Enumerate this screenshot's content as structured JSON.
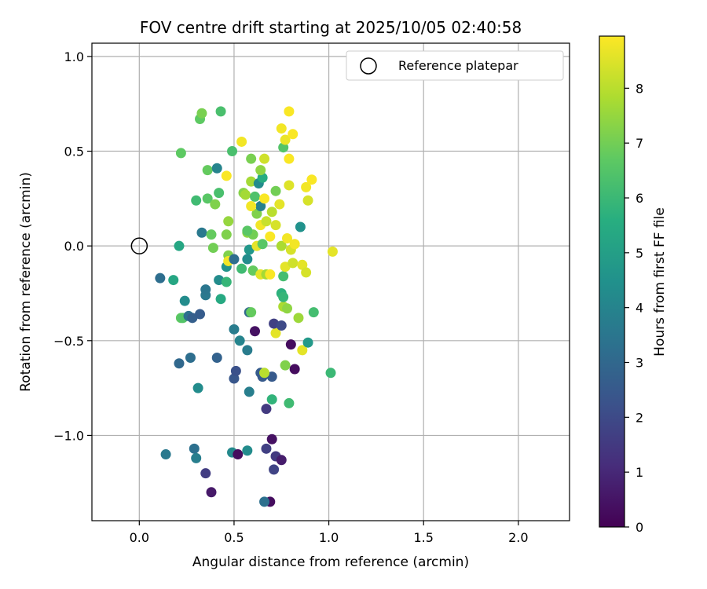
{
  "chart_data": {
    "type": "scatter",
    "title": "FOV centre drift starting at 2025/10/05 02:40:58",
    "xlabel": "Angular distance from reference (arcmin)",
    "ylabel": "Rotation from reference (arcmin)",
    "xlim": [
      -0.25,
      2.27
    ],
    "ylim": [
      -1.45,
      1.07
    ],
    "xticks": [
      0.0,
      0.5,
      1.0,
      1.5,
      2.0
    ],
    "xtick_labels": [
      "0.0",
      "0.5",
      "1.0",
      "1.5",
      "2.0"
    ],
    "yticks": [
      -1.0,
      -0.5,
      0.0,
      0.5,
      1.0
    ],
    "ytick_labels": [
      "−1.0",
      "−0.5",
      "0.0",
      "0.5",
      "1.0"
    ],
    "grid": true,
    "legend": {
      "position": "top-right",
      "entries": [
        {
          "label": "Reference platepar",
          "marker": "open-circle"
        }
      ]
    },
    "reference_point": {
      "x": 0.0,
      "y": 0.0
    },
    "colorbar": {
      "label": "Hours from first FF file",
      "min": 0,
      "max": 8.95,
      "ticks": [
        0,
        1,
        2,
        3,
        4,
        5,
        6,
        7,
        8
      ],
      "tick_labels": [
        "0",
        "1",
        "2",
        "3",
        "4",
        "5",
        "6",
        "7",
        "8"
      ],
      "colormap": "viridis"
    },
    "points": [
      {
        "x": 0.38,
        "y": -1.3,
        "h": 0.6
      },
      {
        "x": 0.35,
        "y": -1.2,
        "h": 1.6
      },
      {
        "x": 0.69,
        "y": -1.35,
        "h": 0.3
      },
      {
        "x": 0.66,
        "y": -1.35,
        "h": 3.3
      },
      {
        "x": 0.14,
        "y": -1.1,
        "h": 3.6
      },
      {
        "x": 0.29,
        "y": -1.07,
        "h": 3.3
      },
      {
        "x": 0.3,
        "y": -1.12,
        "h": 3.8
      },
      {
        "x": 0.49,
        "y": -1.09,
        "h": 4.2
      },
      {
        "x": 0.52,
        "y": -1.1,
        "h": 0.3
      },
      {
        "x": 0.57,
        "y": -1.08,
        "h": 4.3
      },
      {
        "x": 0.67,
        "y": -1.07,
        "h": 1.7
      },
      {
        "x": 0.7,
        "y": -1.02,
        "h": 0.4
      },
      {
        "x": 0.72,
        "y": -1.11,
        "h": 1.5
      },
      {
        "x": 0.75,
        "y": -1.13,
        "h": 0.7
      },
      {
        "x": 0.71,
        "y": -1.18,
        "h": 1.8
      },
      {
        "x": 0.31,
        "y": -0.75,
        "h": 4.3
      },
      {
        "x": 0.58,
        "y": -0.77,
        "h": 3.8
      },
      {
        "x": 0.67,
        "y": -0.86,
        "h": 1.5
      },
      {
        "x": 0.7,
        "y": -0.81,
        "h": 5.8
      },
      {
        "x": 0.79,
        "y": -0.83,
        "h": 6.1
      },
      {
        "x": 0.5,
        "y": -0.7,
        "h": 2.4
      },
      {
        "x": 0.51,
        "y": -0.66,
        "h": 2.2
      },
      {
        "x": 0.64,
        "y": -0.67,
        "h": 2.6
      },
      {
        "x": 0.65,
        "y": -0.69,
        "h": 2.5
      },
      {
        "x": 0.7,
        "y": -0.69,
        "h": 2.5
      },
      {
        "x": 0.66,
        "y": -0.67,
        "h": 8.0
      },
      {
        "x": 0.77,
        "y": -0.63,
        "h": 7.2
      },
      {
        "x": 0.82,
        "y": -0.65,
        "h": 0.3
      },
      {
        "x": 1.01,
        "y": -0.67,
        "h": 6.0
      },
      {
        "x": 0.21,
        "y": -0.62,
        "h": 3.0
      },
      {
        "x": 0.27,
        "y": -0.59,
        "h": 3.2
      },
      {
        "x": 0.41,
        "y": -0.59,
        "h": 2.8
      },
      {
        "x": 0.53,
        "y": -0.5,
        "h": 4.0
      },
      {
        "x": 0.57,
        "y": -0.55,
        "h": 3.7
      },
      {
        "x": 0.61,
        "y": -0.45,
        "h": 0.4
      },
      {
        "x": 0.72,
        "y": -0.46,
        "h": 8.6
      },
      {
        "x": 0.8,
        "y": -0.52,
        "h": 0.3
      },
      {
        "x": 0.86,
        "y": -0.55,
        "h": 8.6
      },
      {
        "x": 0.89,
        "y": -0.51,
        "h": 4.8
      },
      {
        "x": 0.5,
        "y": -0.44,
        "h": 3.7
      },
      {
        "x": 0.22,
        "y": -0.38,
        "h": 6.7
      },
      {
        "x": 0.23,
        "y": -0.38,
        "h": 6.5
      },
      {
        "x": 0.26,
        "y": -0.37,
        "h": 3.3
      },
      {
        "x": 0.28,
        "y": -0.38,
        "h": 2.7
      },
      {
        "x": 0.32,
        "y": -0.36,
        "h": 2.6
      },
      {
        "x": 0.24,
        "y": -0.29,
        "h": 4.3
      },
      {
        "x": 0.35,
        "y": -0.26,
        "h": 3.6
      },
      {
        "x": 0.35,
        "y": -0.23,
        "h": 3.5
      },
      {
        "x": 0.43,
        "y": -0.28,
        "h": 5.4
      },
      {
        "x": 0.58,
        "y": -0.35,
        "h": 3.0
      },
      {
        "x": 0.59,
        "y": -0.35,
        "h": 6.8
      },
      {
        "x": 0.71,
        "y": -0.41,
        "h": 1.7
      },
      {
        "x": 0.75,
        "y": -0.42,
        "h": 2.0
      },
      {
        "x": 0.76,
        "y": -0.32,
        "h": 7.8
      },
      {
        "x": 0.78,
        "y": -0.33,
        "h": 7.4
      },
      {
        "x": 0.84,
        "y": -0.38,
        "h": 7.6
      },
      {
        "x": 0.92,
        "y": -0.35,
        "h": 6.2
      },
      {
        "x": 0.75,
        "y": -0.25,
        "h": 5.7
      },
      {
        "x": 0.76,
        "y": -0.27,
        "h": 5.9
      },
      {
        "x": 0.11,
        "y": -0.17,
        "h": 3.2
      },
      {
        "x": 0.18,
        "y": -0.18,
        "h": 5.3
      },
      {
        "x": 0.42,
        "y": -0.18,
        "h": 4.3
      },
      {
        "x": 0.46,
        "y": -0.19,
        "h": 5.9
      },
      {
        "x": 0.46,
        "y": -0.11,
        "h": 4.6
      },
      {
        "x": 0.47,
        "y": -0.05,
        "h": 7.2
      },
      {
        "x": 0.47,
        "y": -0.08,
        "h": 8.8
      },
      {
        "x": 0.5,
        "y": -0.07,
        "h": 3.2
      },
      {
        "x": 0.54,
        "y": -0.12,
        "h": 6.1
      },
      {
        "x": 0.57,
        "y": -0.07,
        "h": 4.3
      },
      {
        "x": 0.58,
        "y": -0.02,
        "h": 4.7
      },
      {
        "x": 0.6,
        "y": -0.13,
        "h": 6.8
      },
      {
        "x": 0.64,
        "y": -0.15,
        "h": 8.6
      },
      {
        "x": 0.67,
        "y": -0.15,
        "h": 7.7
      },
      {
        "x": 0.69,
        "y": -0.15,
        "h": 8.9
      },
      {
        "x": 0.76,
        "y": -0.16,
        "h": 6.2
      },
      {
        "x": 0.77,
        "y": -0.11,
        "h": 8.6
      },
      {
        "x": 0.81,
        "y": -0.09,
        "h": 8.3
      },
      {
        "x": 0.86,
        "y": -0.1,
        "h": 8.6
      },
      {
        "x": 0.88,
        "y": -0.14,
        "h": 8.4
      },
      {
        "x": 1.02,
        "y": -0.03,
        "h": 8.6
      },
      {
        "x": 0.21,
        "y": 0.0,
        "h": 5.3
      },
      {
        "x": 0.39,
        "y": -0.01,
        "h": 7.0
      },
      {
        "x": 0.46,
        "y": 0.06,
        "h": 7.2
      },
      {
        "x": 0.57,
        "y": 0.07,
        "h": 7.4
      },
      {
        "x": 0.6,
        "y": 0.06,
        "h": 7.0
      },
      {
        "x": 0.62,
        "y": 0.0,
        "h": 8.6
      },
      {
        "x": 0.65,
        "y": 0.01,
        "h": 6.6
      },
      {
        "x": 0.69,
        "y": 0.05,
        "h": 8.9
      },
      {
        "x": 0.75,
        "y": 0.0,
        "h": 7.8
      },
      {
        "x": 0.78,
        "y": 0.04,
        "h": 8.8
      },
      {
        "x": 0.8,
        "y": -0.02,
        "h": 8.4
      },
      {
        "x": 0.82,
        "y": 0.01,
        "h": 8.8
      },
      {
        "x": 0.33,
        "y": 0.07,
        "h": 3.6
      },
      {
        "x": 0.38,
        "y": 0.06,
        "h": 6.8
      },
      {
        "x": 0.57,
        "y": 0.08,
        "h": 6.6
      },
      {
        "x": 0.47,
        "y": 0.13,
        "h": 7.5
      },
      {
        "x": 0.64,
        "y": 0.11,
        "h": 8.8
      },
      {
        "x": 0.67,
        "y": 0.13,
        "h": 8.2
      },
      {
        "x": 0.72,
        "y": 0.11,
        "h": 8.4
      },
      {
        "x": 0.85,
        "y": 0.1,
        "h": 4.5
      },
      {
        "x": 0.62,
        "y": 0.17,
        "h": 7.2
      },
      {
        "x": 0.64,
        "y": 0.21,
        "h": 3.9
      },
      {
        "x": 0.7,
        "y": 0.18,
        "h": 8.0
      },
      {
        "x": 0.74,
        "y": 0.22,
        "h": 8.6
      },
      {
        "x": 0.3,
        "y": 0.24,
        "h": 6.1
      },
      {
        "x": 0.36,
        "y": 0.25,
        "h": 6.6
      },
      {
        "x": 0.4,
        "y": 0.22,
        "h": 7.2
      },
      {
        "x": 0.42,
        "y": 0.28,
        "h": 6.3
      },
      {
        "x": 0.55,
        "y": 0.28,
        "h": 7.3
      },
      {
        "x": 0.56,
        "y": 0.27,
        "h": 7.7
      },
      {
        "x": 0.59,
        "y": 0.21,
        "h": 8.8
      },
      {
        "x": 0.61,
        "y": 0.26,
        "h": 6.4
      },
      {
        "x": 0.66,
        "y": 0.25,
        "h": 8.9
      },
      {
        "x": 0.72,
        "y": 0.29,
        "h": 7.0
      },
      {
        "x": 0.89,
        "y": 0.24,
        "h": 8.4
      },
      {
        "x": 0.59,
        "y": 0.34,
        "h": 7.7
      },
      {
        "x": 0.63,
        "y": 0.33,
        "h": 4.3
      },
      {
        "x": 0.65,
        "y": 0.36,
        "h": 5.5
      },
      {
        "x": 0.79,
        "y": 0.32,
        "h": 8.5
      },
      {
        "x": 0.88,
        "y": 0.31,
        "h": 8.8
      },
      {
        "x": 0.91,
        "y": 0.35,
        "h": 8.9
      },
      {
        "x": 0.36,
        "y": 0.4,
        "h": 6.8
      },
      {
        "x": 0.41,
        "y": 0.41,
        "h": 4.0
      },
      {
        "x": 0.46,
        "y": 0.37,
        "h": 8.9
      },
      {
        "x": 0.64,
        "y": 0.4,
        "h": 7.4
      },
      {
        "x": 0.59,
        "y": 0.46,
        "h": 7.1
      },
      {
        "x": 0.66,
        "y": 0.46,
        "h": 8.3
      },
      {
        "x": 0.79,
        "y": 0.46,
        "h": 8.9
      },
      {
        "x": 0.22,
        "y": 0.49,
        "h": 6.7
      },
      {
        "x": 0.49,
        "y": 0.5,
        "h": 6.3
      },
      {
        "x": 0.54,
        "y": 0.55,
        "h": 8.8
      },
      {
        "x": 0.76,
        "y": 0.52,
        "h": 6.5
      },
      {
        "x": 0.77,
        "y": 0.56,
        "h": 8.7
      },
      {
        "x": 0.81,
        "y": 0.59,
        "h": 8.9
      },
      {
        "x": 0.75,
        "y": 0.62,
        "h": 8.8
      },
      {
        "x": 0.32,
        "y": 0.67,
        "h": 6.7
      },
      {
        "x": 0.33,
        "y": 0.7,
        "h": 7.1
      },
      {
        "x": 0.43,
        "y": 0.71,
        "h": 6.3
      },
      {
        "x": 0.79,
        "y": 0.71,
        "h": 8.9
      }
    ]
  }
}
